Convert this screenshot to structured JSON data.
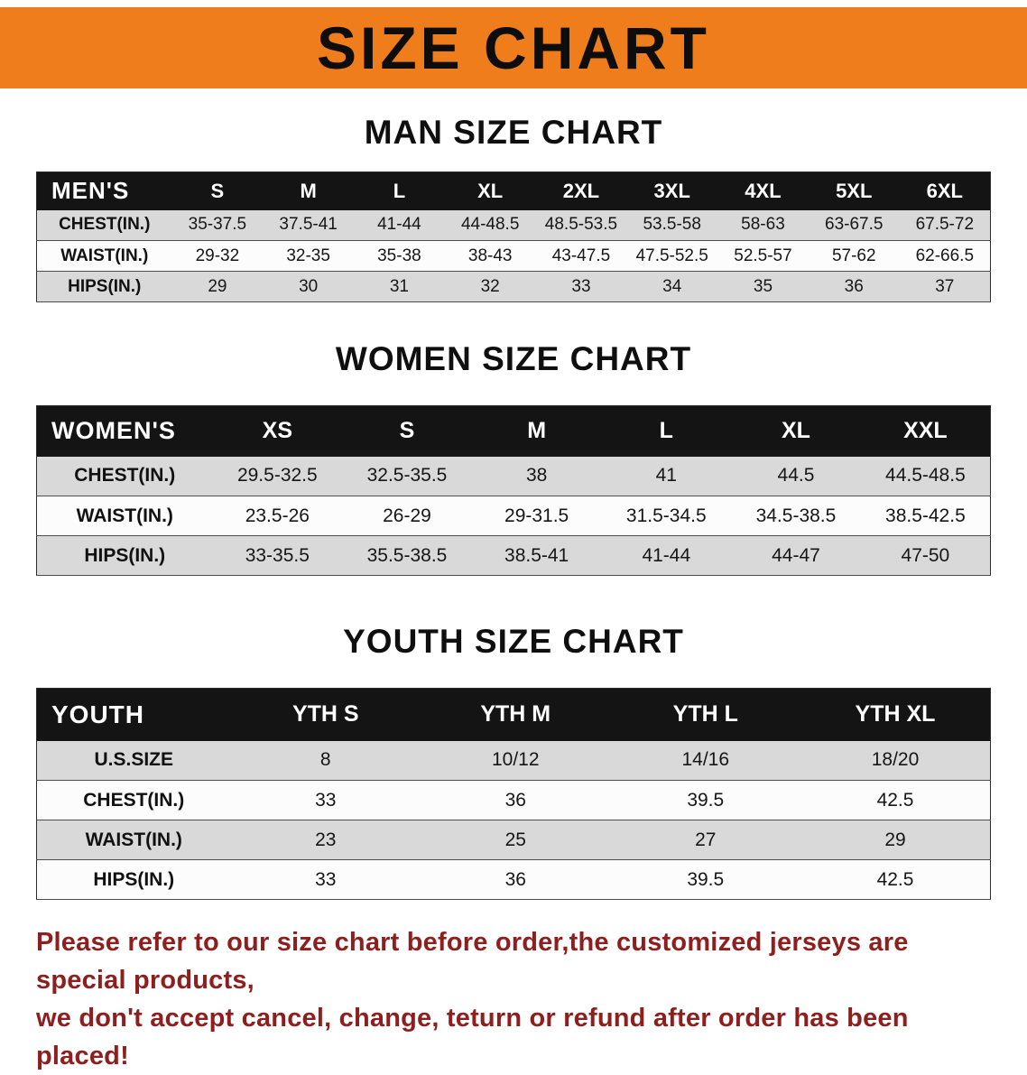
{
  "banner": {
    "title": "SIZE CHART"
  },
  "sections": [
    {
      "id": "men",
      "title": "MAN SIZE CHART",
      "corner_label": "MEN'S",
      "columns": [
        "S",
        "M",
        "L",
        "XL",
        "2XL",
        "3XL",
        "4XL",
        "5XL",
        "6XL"
      ],
      "rows": [
        {
          "label": "CHEST(IN.)",
          "values": [
            "35-37.5",
            "37.5-41",
            "41-44",
            "44-48.5",
            "48.5-53.5",
            "53.5-58",
            "58-63",
            "63-67.5",
            "67.5-72"
          ]
        },
        {
          "label": "WAIST(IN.)",
          "values": [
            "29-32",
            "32-35",
            "35-38",
            "38-43",
            "43-47.5",
            "47.5-52.5",
            "52.5-57",
            "57-62",
            "62-66.5"
          ]
        },
        {
          "label": "HIPS(IN.)",
          "values": [
            "29",
            "30",
            "31",
            "32",
            "33",
            "34",
            "35",
            "36",
            "37"
          ]
        }
      ]
    },
    {
      "id": "women",
      "title": "WOMEN SIZE CHART",
      "corner_label": "WOMEN'S",
      "columns": [
        "XS",
        "S",
        "M",
        "L",
        "XL",
        "XXL"
      ],
      "rows": [
        {
          "label": "CHEST(IN.)",
          "values": [
            "29.5-32.5",
            "32.5-35.5",
            "38",
            "41",
            "44.5",
            "44.5-48.5"
          ]
        },
        {
          "label": "WAIST(IN.)",
          "values": [
            "23.5-26",
            "26-29",
            "29-31.5",
            "31.5-34.5",
            "34.5-38.5",
            "38.5-42.5"
          ]
        },
        {
          "label": "HIPS(IN.)",
          "values": [
            "33-35.5",
            "35.5-38.5",
            "38.5-41",
            "41-44",
            "44-47",
            "47-50"
          ]
        }
      ]
    },
    {
      "id": "youth",
      "title": "YOUTH SIZE CHART",
      "corner_label": "YOUTH",
      "columns": [
        "YTH S",
        "YTH M",
        "YTH L",
        "YTH XL"
      ],
      "rows": [
        {
          "label": "U.S.SIZE",
          "values": [
            "8",
            "10/12",
            "14/16",
            "18/20"
          ]
        },
        {
          "label": "CHEST(IN.)",
          "values": [
            "33",
            "36",
            "39.5",
            "42.5"
          ]
        },
        {
          "label": "WAIST(IN.)",
          "values": [
            "23",
            "25",
            "27",
            "29"
          ]
        },
        {
          "label": "HIPS(IN.)",
          "values": [
            "33",
            "36",
            "39.5",
            "42.5"
          ]
        }
      ]
    }
  ],
  "footer": {
    "lines": [
      "Please refer to our size chart before order,the customized jerseys are special products,",
      "we don't accept cancel, change, teturn or refund after order has been placed!"
    ]
  },
  "colors": {
    "banner_bg": "#ef7d1c",
    "table_header_bg": "#141414",
    "row_alt_bg": "#d9d9d9",
    "footer_text": "#8e1f1f"
  }
}
